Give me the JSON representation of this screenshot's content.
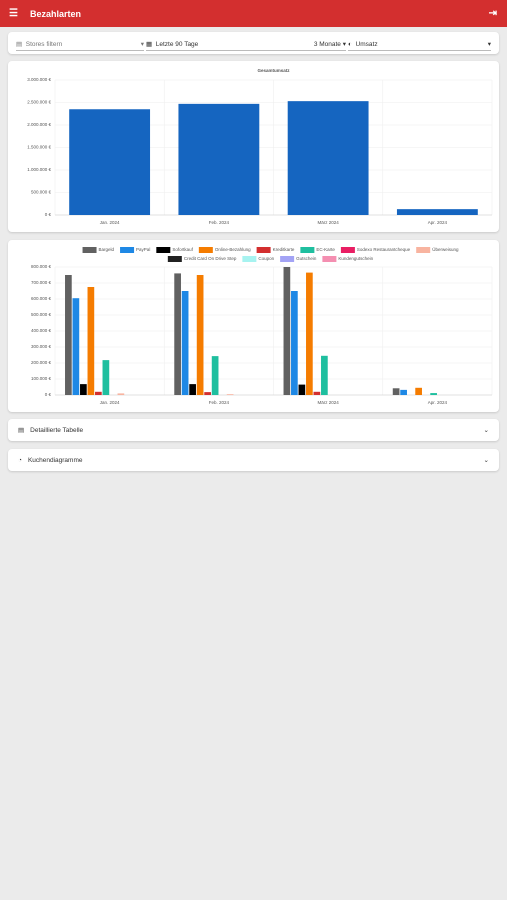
{
  "header": {
    "title": "Bezahlarten"
  },
  "filters": {
    "store": "Stores filtern",
    "range": "Letzte 90 Tage",
    "period": "3 Monate",
    "metric": "Umsatz"
  },
  "chart_data": [
    {
      "type": "bar",
      "title": "Gesamtumsatz",
      "categories": [
        "Jan. 2024",
        "Feb. 2024",
        "März 2024",
        "Apr. 2024"
      ],
      "values": [
        2350000,
        2470000,
        2530000,
        130000
      ],
      "color": "#1565c0",
      "ylim": [
        0,
        3000000
      ],
      "yticks": [
        {
          "value": 0,
          "label": "0 €"
        },
        {
          "value": 500000,
          "label": "500.000 €"
        },
        {
          "value": 1000000,
          "label": "1.000.000 €"
        },
        {
          "value": 1500000,
          "label": "1.500.000 €"
        },
        {
          "value": 2000000,
          "label": "2.000.000 €"
        },
        {
          "value": 2500000,
          "label": "2.500.000 €"
        },
        {
          "value": 3000000,
          "label": "3.000.000 €"
        }
      ],
      "grid": true
    },
    {
      "type": "bar",
      "categories": [
        "Jan. 2024",
        "Feb. 2024",
        "März 2024",
        "Apr. 2024"
      ],
      "ylim": [
        0,
        800000
      ],
      "yticks": [
        {
          "value": 0,
          "label": "0 €"
        },
        {
          "value": 100000,
          "label": "100.000 €"
        },
        {
          "value": 200000,
          "label": "200.000 €"
        },
        {
          "value": 300000,
          "label": "300.000 €"
        },
        {
          "value": 400000,
          "label": "400.000 €"
        },
        {
          "value": 500000,
          "label": "500.000 €"
        },
        {
          "value": 600000,
          "label": "600.000 €"
        },
        {
          "value": 700000,
          "label": "700.000 €"
        },
        {
          "value": 800000,
          "label": "800.000 €"
        }
      ],
      "grid": true,
      "legend": "top",
      "series": [
        {
          "name": "Bargeld",
          "color": "#616161",
          "values": [
            750000,
            760000,
            800000,
            42000
          ]
        },
        {
          "name": "PayPal",
          "color": "#1e88e5",
          "values": [
            605000,
            650000,
            650000,
            32000
          ]
        },
        {
          "name": "Sofortkauf",
          "color": "#000000",
          "values": [
            68000,
            68000,
            65000,
            0
          ]
        },
        {
          "name": "Online-Bezahlung",
          "color": "#f57c00",
          "values": [
            675000,
            750000,
            765000,
            45000
          ]
        },
        {
          "name": "Kreditkarte",
          "color": "#d32f2f",
          "values": [
            20000,
            18000,
            20000,
            0
          ]
        },
        {
          "name": "EC-Karte",
          "color": "#1fbf9f",
          "values": [
            218000,
            243000,
            245000,
            12000
          ]
        },
        {
          "name": "Sodexo Restaurantcheque",
          "color": "#e91e63",
          "values": [
            0,
            0,
            0,
            0
          ]
        },
        {
          "name": "Überweisung",
          "color": "#f8b4a0",
          "values": [
            10000,
            5000,
            0,
            0
          ]
        },
        {
          "name": "Credit Card On Drive Step",
          "color": "#212121",
          "values": [
            0,
            0,
            0,
            0
          ]
        },
        {
          "name": "Coupon",
          "color": "#a7f3f0",
          "values": [
            0,
            0,
            0,
            0
          ]
        },
        {
          "name": "Gutschein",
          "color": "#a3a3f5",
          "values": [
            0,
            0,
            0,
            0
          ]
        },
        {
          "name": "Kundengutschein",
          "color": "#f48fb1",
          "values": [
            0,
            0,
            0,
            0
          ]
        }
      ]
    }
  ],
  "sections": [
    "Detaillierte Tabelle",
    "Kuchendiagramme"
  ]
}
